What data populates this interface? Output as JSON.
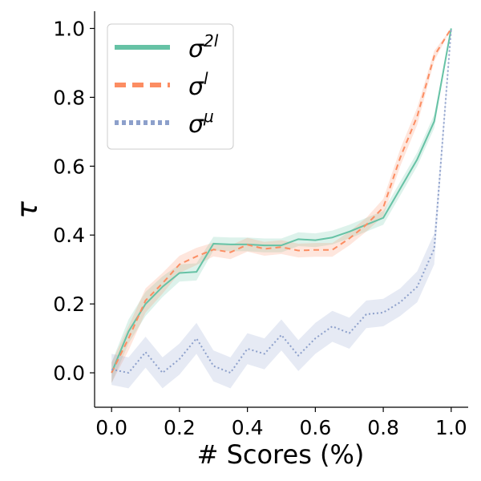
{
  "chart_data": {
    "type": "line",
    "xlabel": "# Scores (%)",
    "ylabel": "τ",
    "xlim": [
      -0.05,
      1.05
    ],
    "ylim": [
      -0.1,
      1.05
    ],
    "xticks": [
      0.0,
      0.2,
      0.4,
      0.6,
      0.8,
      1.0
    ],
    "yticks": [
      0.0,
      0.2,
      0.4,
      0.6,
      0.8,
      1.0
    ],
    "xtick_labels": [
      "0.0",
      "0.2",
      "0.4",
      "0.6",
      "0.8",
      "1.0"
    ],
    "ytick_labels": [
      "0.0",
      "0.2",
      "0.4",
      "0.6",
      "0.8",
      "1.0"
    ],
    "grid": false,
    "legend_position": "top-left",
    "x": [
      0.0,
      0.05,
      0.1,
      0.15,
      0.2,
      0.25,
      0.3,
      0.35,
      0.4,
      0.45,
      0.5,
      0.55,
      0.6,
      0.65,
      0.7,
      0.75,
      0.8,
      0.85,
      0.9,
      0.95,
      1.0
    ],
    "series": [
      {
        "name": "σ2l",
        "legend_base": "σ",
        "legend_sup": "2l",
        "color": "#66c2a5",
        "style": "solid",
        "values": [
          0.0,
          0.12,
          0.2,
          0.25,
          0.29,
          0.293,
          0.375,
          0.373,
          0.373,
          0.37,
          0.37,
          0.388,
          0.385,
          0.393,
          0.41,
          0.43,
          0.45,
          0.535,
          0.62,
          0.73,
          1.0
        ],
        "band": [
          0.03,
          0.035,
          0.035,
          0.03,
          0.025,
          0.025,
          0.02,
          0.02,
          0.02,
          0.02,
          0.02,
          0.02,
          0.02,
          0.02,
          0.02,
          0.02,
          0.02,
          0.02,
          0.02,
          0.02,
          0.0
        ]
      },
      {
        "name": "σl",
        "legend_base": "σ",
        "legend_sup": "l",
        "color": "#fc8d62",
        "style": "dashed",
        "values": [
          0.0,
          0.1,
          0.21,
          0.26,
          0.315,
          0.338,
          0.358,
          0.35,
          0.372,
          0.36,
          0.365,
          0.355,
          0.357,
          0.357,
          0.39,
          0.43,
          0.48,
          0.625,
          0.745,
          0.92,
          1.0
        ],
        "band": [
          0.03,
          0.035,
          0.035,
          0.03,
          0.025,
          0.025,
          0.02,
          0.02,
          0.02,
          0.02,
          0.02,
          0.02,
          0.02,
          0.02,
          0.02,
          0.02,
          0.025,
          0.025,
          0.025,
          0.015,
          0.0
        ]
      },
      {
        "name": "σμ",
        "legend_base": "σ",
        "legend_sup": "μ",
        "color": "#8da0cb",
        "style": "dotted",
        "values": [
          0.01,
          0.0,
          0.06,
          0.0,
          0.04,
          0.1,
          0.02,
          0.0,
          0.07,
          0.055,
          0.11,
          0.05,
          0.1,
          0.135,
          0.115,
          0.17,
          0.175,
          0.205,
          0.25,
          0.36,
          1.0
        ],
        "band": [
          0.045,
          0.045,
          0.045,
          0.045,
          0.045,
          0.045,
          0.045,
          0.045,
          0.045,
          0.045,
          0.045,
          0.045,
          0.045,
          0.045,
          0.045,
          0.04,
          0.04,
          0.04,
          0.045,
          0.045,
          0.0
        ]
      }
    ]
  }
}
